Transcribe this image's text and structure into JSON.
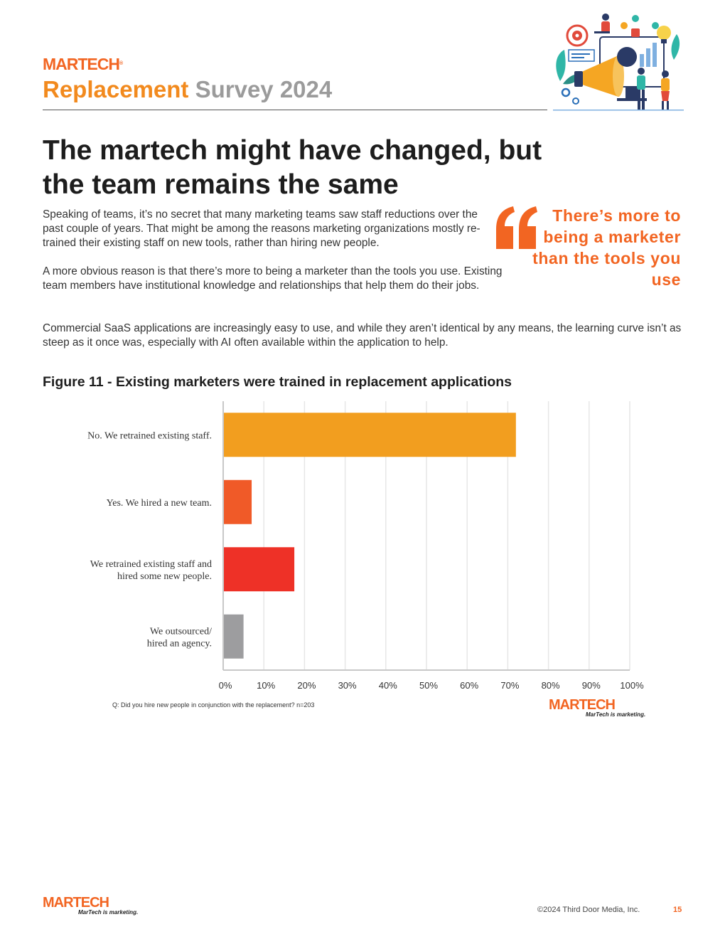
{
  "header": {
    "logo_text": "MARTECH",
    "logo_tm": "®",
    "survey_title_word1": "Replacement",
    "survey_title_word2": "Survey 2024"
  },
  "article": {
    "title": "The martech might have changed, but the team remains the same",
    "paragraphs": [
      "Speaking of teams, it’s no secret that many marketing teams saw staff reductions over the past couple of years. That might be among the reasons marketing organizations mostly re-trained their existing staff on new tools, rather than hiring new people.",
      "A more obvious reason is that there’s more to being a marketer than the tools you use. Existing team members have institutional knowledge and relationships that help them do their jobs.",
      "Commercial SaaS applications are increasingly easy to use, and while they aren’t identical by any means, the learning curve isn’t as steep as it once was, especially with AI often available within the application to help."
    ],
    "pull_quote": "There’s more to being a marketer than the tools you use"
  },
  "figure": {
    "title": "Figure 11 - Existing marketers were trained in replacement applications",
    "note": "Q: Did you hire new people in conjunction with the replacement? n=203",
    "logo_text": "MARTECH",
    "tagline": "MarTech is marketing."
  },
  "chart_data": {
    "type": "bar",
    "orientation": "horizontal",
    "categories": [
      "No. We retrained existing staff.",
      "Yes. We hired a new team.",
      "We retrained existing staff and hired some new people.",
      "We outsourced/ hired an agency."
    ],
    "category_lines": [
      [
        "No. We retrained existing staff."
      ],
      [
        "Yes. We hired a new team."
      ],
      [
        "We retrained existing staff and",
        "hired some new people."
      ],
      [
        "We outsourced/",
        "hired an agency."
      ]
    ],
    "values": [
      72,
      7,
      17.5,
      5
    ],
    "colors": [
      "#f29e1f",
      "#f05a28",
      "#ee3127",
      "#9d9d9f"
    ],
    "x_ticks": [
      "0%",
      "10%",
      "20%",
      "30%",
      "40%",
      "50%",
      "60%",
      "70%",
      "80%",
      "90%",
      "100%"
    ],
    "xlim": [
      0,
      100
    ],
    "grid": true,
    "title": "Figure 11 - Existing marketers were trained in replacement applications"
  },
  "footer": {
    "logo_text": "MARTECH",
    "tagline": "MarTech is marketing.",
    "copyright": "©2024 Third Door Media, Inc.",
    "page_number": "15"
  },
  "colors": {
    "brand_orange": "#f26522",
    "title_orange": "#f28a1e",
    "title_gray": "#9b9b9b"
  }
}
